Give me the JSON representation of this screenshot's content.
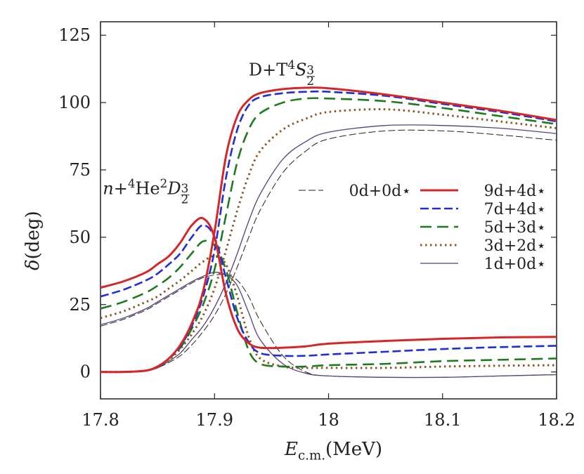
{
  "chart_data": {
    "type": "line",
    "xlabel": [
      {
        "t": "E",
        "style": "it"
      },
      {
        "t": "c.m.",
        "style": "sub"
      },
      {
        "t": " (MeV)",
        "style": "n"
      }
    ],
    "ylabel": [
      {
        "t": "δ",
        "style": "it"
      },
      {
        "t": " (deg)",
        "style": "n"
      }
    ],
    "xlim": [
      17.8,
      18.2
    ],
    "xticks": [
      17.8,
      17.9,
      18,
      18.1,
      18.2
    ],
    "ylim": [
      -10,
      130
    ],
    "yticks": [
      0,
      25,
      50,
      75,
      100,
      125
    ],
    "annotations": [
      {
        "segments": [
          {
            "t": "D+T ",
            "style": "n"
          },
          {
            "t": "4",
            "style": "sup"
          },
          {
            "t": "S",
            "style": "it"
          },
          {
            "t": "3",
            "style": "num"
          },
          {
            "t": "2",
            "style": "den"
          }
        ],
        "x": 17.93,
        "y": 110
      },
      {
        "segments": [
          {
            "t": "n",
            "style": "it"
          },
          {
            "t": "+",
            "style": "n"
          },
          {
            "t": "4",
            "style": "sup"
          },
          {
            "t": "He ",
            "style": "n"
          },
          {
            "t": "2",
            "style": "sup"
          },
          {
            "t": "D",
            "style": "it"
          },
          {
            "t": "3",
            "style": "num"
          },
          {
            "t": "2",
            "style": "den"
          }
        ],
        "x": 17.802,
        "y": 66
      }
    ],
    "x": [
      17.8,
      17.82,
      17.84,
      17.85,
      17.86,
      17.87,
      17.88,
      17.89,
      17.9,
      17.91,
      17.92,
      17.93,
      17.94,
      17.96,
      17.98,
      18.0,
      18.05,
      18.1,
      18.15,
      18.2
    ],
    "series": [
      {
        "name": "9d+4d⋆",
        "color": "#d62728",
        "dash": "none",
        "width": 3,
        "d_wave": [
          31.3,
          33.6,
          37,
          40,
          43,
          48,
          54.4,
          57,
          50,
          29,
          16,
          10.7,
          9,
          9,
          9.5,
          10.5,
          11.5,
          12.3,
          12.8,
          13
        ],
        "s_wave": [
          0,
          0,
          0.5,
          2,
          5,
          10,
          18,
          30,
          52,
          80,
          95,
          101,
          103.5,
          105,
          105.5,
          105.3,
          103,
          100,
          97,
          93.5
        ]
      },
      {
        "name": "7d+4d⋆",
        "color": "#1f2fd6",
        "dash": "12 5",
        "width": 2.6,
        "d_wave": [
          28,
          30.5,
          34,
          36.5,
          40,
          44,
          50,
          54.5,
          50,
          35,
          20,
          11,
          7,
          6,
          6,
          6.5,
          7.5,
          8.5,
          9.2,
          9.7
        ],
        "s_wave": [
          0,
          0,
          0.5,
          2,
          5,
          9.5,
          17,
          28,
          45,
          72,
          90,
          99,
          102,
          103.5,
          104,
          104,
          102.5,
          99.5,
          96.5,
          93
        ]
      },
      {
        "name": "5d+3d⋆",
        "color": "#1e7a1e",
        "dash": "16 8",
        "width": 2.6,
        "d_wave": [
          23.5,
          26,
          29.5,
          32,
          35,
          39,
          44,
          48.5,
          47,
          38,
          22,
          8,
          3,
          2,
          2,
          2.5,
          3,
          4,
          4.5,
          5
        ],
        "s_wave": [
          0,
          0,
          0.5,
          2,
          5,
          9,
          16,
          25,
          38,
          58,
          78,
          90,
          96,
          100,
          101.5,
          101.5,
          100.5,
          98,
          95,
          92
        ]
      },
      {
        "name": "3d+2d⋆",
        "color": "#8b5a2b",
        "dash": "2.5 4.5",
        "width": 3,
        "d_wave": [
          20,
          22.5,
          26,
          28,
          31,
          34,
          37.5,
          41,
          43,
          40,
          28,
          13,
          5,
          2,
          1.5,
          1.5,
          1.5,
          2,
          2.3,
          2.5
        ],
        "s_wave": [
          0,
          0,
          0.5,
          2,
          4.5,
          8.5,
          14,
          21,
          31,
          45,
          60,
          73,
          82,
          90,
          94,
          96.5,
          97.5,
          95.5,
          93,
          90.5
        ]
      },
      {
        "name": "1d+0d⋆",
        "color": "#5a3f78",
        "dash": "none",
        "width": 1.3,
        "d_wave": [
          17.5,
          20,
          23.5,
          26,
          28.5,
          31,
          33.5,
          35.5,
          37,
          36,
          32,
          22,
          12,
          3,
          -0.5,
          -1.5,
          -2,
          -2,
          -1.5,
          -1
        ],
        "s_wave": [
          0,
          0,
          0.5,
          1.5,
          4,
          7,
          12,
          17,
          24,
          33,
          44,
          56,
          66,
          79,
          85.5,
          89,
          91.5,
          91.5,
          90.5,
          88.5
        ]
      },
      {
        "name": "0d+0d⋆",
        "color": "#222222",
        "dash": "10 4",
        "width": 1,
        "d_wave": [
          17,
          19.5,
          23,
          25.5,
          28,
          30.5,
          33,
          35,
          36,
          36,
          34,
          28,
          19,
          6,
          0,
          -1.5,
          -2,
          -2,
          -1.5,
          -1
        ],
        "s_wave": [
          0,
          0,
          0.5,
          1.5,
          3.5,
          6,
          10,
          15,
          21,
          29,
          39,
          50,
          60,
          74,
          82,
          86.5,
          89.5,
          89.5,
          88,
          86
        ]
      }
    ]
  }
}
